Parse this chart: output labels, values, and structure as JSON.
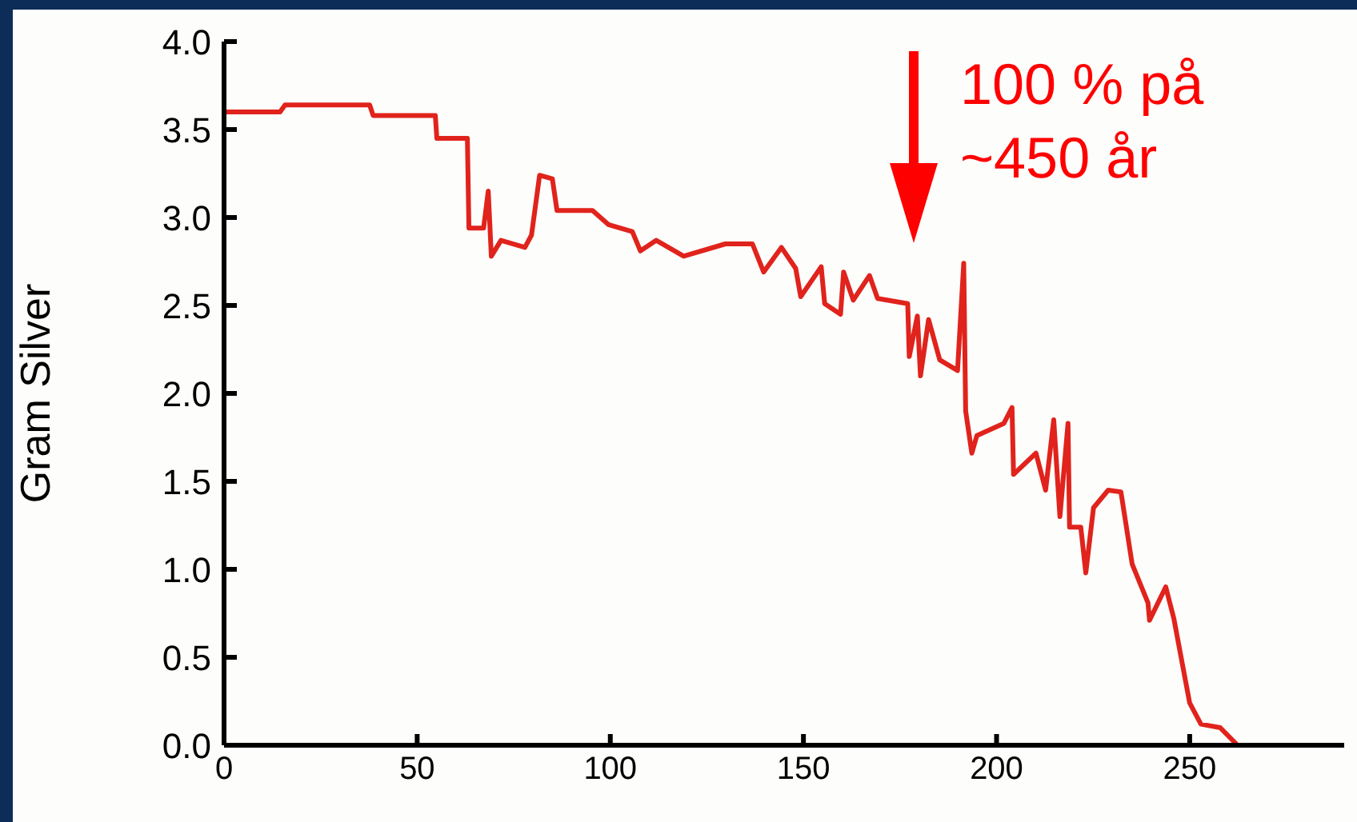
{
  "chart_data": {
    "type": "line",
    "ylabel": "Gram Silver",
    "annotations": [
      "100 % på\n~450 år"
    ],
    "x": [
      0,
      14.5,
      15.8,
      37.7,
      38.6,
      54.7,
      55.1,
      63,
      63.4,
      67.2,
      68.4,
      69.2,
      71.7,
      77.9,
      79.6,
      81.7,
      85,
      86.2,
      95.4,
      99.5,
      105.7,
      107.8,
      111.9,
      119,
      129.8,
      136.8,
      139.7,
      144.3,
      148,
      149.3,
      154.6,
      155.5,
      159.6,
      160.4,
      162.9,
      167.1,
      169.2,
      177,
      177.4,
      179.5,
      180.3,
      182.4,
      185.3,
      189.9,
      191.5,
      192,
      193.6,
      194.9,
      201.9,
      204,
      204.4,
      210.2,
      212.7,
      214.8,
      216.4,
      218.5,
      218.9,
      221.8,
      223.1,
      225.1,
      228.9,
      232.2,
      235.1,
      239.2,
      239.6,
      243.8,
      245.9,
      250,
      252.9,
      257.9,
      262.4
    ],
    "series": [
      {
        "color": "#e0231c",
        "values": [
          3.6,
          3.6,
          3.64,
          3.64,
          3.58,
          3.58,
          3.45,
          3.45,
          2.94,
          2.94,
          3.15,
          2.78,
          2.87,
          2.83,
          2.9,
          3.24,
          3.22,
          3.04,
          3.04,
          2.96,
          2.92,
          2.81,
          2.87,
          2.78,
          2.85,
          2.85,
          2.69,
          2.83,
          2.71,
          2.55,
          2.72,
          2.51,
          2.45,
          2.69,
          2.53,
          2.67,
          2.54,
          2.51,
          2.21,
          2.44,
          2.1,
          2.42,
          2.19,
          2.13,
          2.74,
          1.9,
          1.66,
          1.76,
          1.83,
          1.92,
          1.54,
          1.66,
          1.45,
          1.85,
          1.3,
          1.83,
          1.24,
          1.24,
          0.98,
          1.35,
          1.45,
          1.44,
          1.03,
          0.81,
          0.71,
          0.9,
          0.72,
          0.24,
          0.12,
          0.1,
          0
        ]
      }
    ],
    "xlim": [
      0,
      290
    ],
    "xticks": [
      0,
      50,
      100,
      150,
      200,
      250
    ],
    "ylim": [
      0,
      4
    ],
    "yticks": [
      {
        "value": 0,
        "label": "0.0"
      },
      {
        "value": 0.5,
        "label": "0.5"
      },
      {
        "value": 1,
        "label": "1.0"
      },
      {
        "value": 1.5,
        "label": "1.5"
      },
      {
        "value": 2,
        "label": "2.0"
      },
      {
        "value": 2.5,
        "label": "2.5"
      },
      {
        "value": 3,
        "label": "3.0"
      },
      {
        "value": 3.5,
        "label": "3.5"
      },
      {
        "value": 4,
        "label": "4.0"
      }
    ],
    "grid": false,
    "legend": false,
    "marker": "none",
    "line_style": "solid"
  }
}
